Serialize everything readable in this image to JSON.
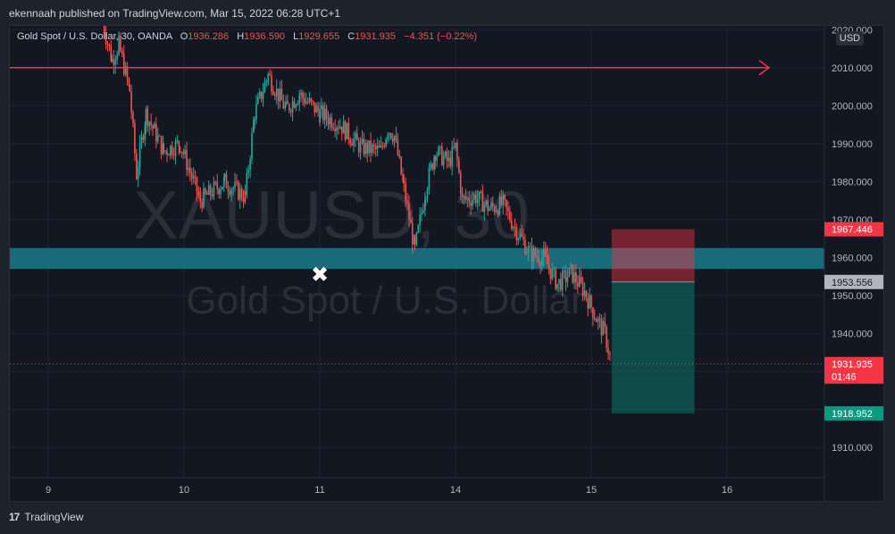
{
  "header": {
    "published": "ekennaah published on TradingView.com, Mar 15, 2022 06:28 UTC+1"
  },
  "legend": {
    "symbol": "Gold Spot / U.S. Dollar, 30, OANDA",
    "open_label": "O",
    "open": "1936.286",
    "high_label": "H",
    "high": "1936.590",
    "low_label": "L",
    "low": "1929.655",
    "close_label": "C",
    "close": "1931.935",
    "change": "−4.351 (−0.22%)"
  },
  "currency": "USD",
  "watermark": {
    "ticker": "XAUUSD, 30",
    "name": "Gold Spot / U.S. Dollar"
  },
  "footer": {
    "brand": "TradingView",
    "logo": "17"
  },
  "colors": {
    "bull": "#26a69a",
    "bear": "#ef5350",
    "zone": "#1b7a8a",
    "stop": "#f23645",
    "target": "#089981"
  },
  "chart_data": {
    "type": "candlestick",
    "title": "Gold Spot / U.S. Dollar, 30, OANDA",
    "ylim": [
      1902,
      2021
    ],
    "y_ticks": [
      "1910.000",
      "1920.000",
      "1930.000",
      "1940.000",
      "1950.000",
      "1960.000",
      "1970.000",
      "1980.000",
      "1990.000",
      "2000.000",
      "2010.000",
      "2020.000"
    ],
    "x_ticks": [
      {
        "label": "9",
        "pos": 0.0
      },
      {
        "label": "10",
        "pos": 1.0
      },
      {
        "label": "11",
        "pos": 2.0
      },
      {
        "label": "14",
        "pos": 3.0
      },
      {
        "label": "15",
        "pos": 4.0
      },
      {
        "label": "16",
        "pos": 5.0
      }
    ],
    "price_path": [
      [
        0.4,
        2022
      ],
      [
        0.47,
        2012
      ],
      [
        0.52,
        2016
      ],
      [
        0.6,
        2004
      ],
      [
        0.65,
        1982
      ],
      [
        0.72,
        1998
      ],
      [
        0.85,
        1988
      ],
      [
        0.97,
        1990
      ],
      [
        1.12,
        1975
      ],
      [
        1.3,
        1980
      ],
      [
        1.45,
        1976
      ],
      [
        1.52,
        1998
      ],
      [
        1.62,
        2008
      ],
      [
        1.75,
        1999
      ],
      [
        1.85,
        2003
      ],
      [
        2.0,
        1998
      ],
      [
        2.15,
        1995
      ],
      [
        2.3,
        1989
      ],
      [
        2.45,
        1988
      ],
      [
        2.5,
        1994
      ],
      [
        2.55,
        1992
      ],
      [
        2.62,
        1978
      ],
      [
        2.7,
        1962
      ],
      [
        2.78,
        1978
      ],
      [
        2.85,
        1988
      ],
      [
        2.95,
        1985
      ],
      [
        3.0,
        1989
      ],
      [
        3.05,
        1975
      ],
      [
        3.15,
        1976
      ],
      [
        3.25,
        1973
      ],
      [
        3.35,
        1974
      ],
      [
        3.45,
        1967
      ],
      [
        3.55,
        1961
      ],
      [
        3.65,
        1960
      ],
      [
        3.75,
        1953
      ],
      [
        3.85,
        1956
      ],
      [
        3.95,
        1951
      ],
      [
        4.05,
        1943
      ],
      [
        4.1,
        1940
      ],
      [
        4.15,
        1932
      ]
    ],
    "horizontal_ray": {
      "price": 2010.0
    },
    "resistance_zone": {
      "from": 1957.0,
      "to": 1962.5
    },
    "marker": {
      "x": 2.0,
      "price": 1955.5,
      "symbol": "✖"
    },
    "trade": {
      "x_start": 4.15,
      "x_end": 4.76,
      "stop": 1967.446,
      "entry": 1953.556,
      "target": 1918.952
    },
    "last_price": 1931.935,
    "price_labels": [
      {
        "text": "1967.446",
        "price": 1967.446,
        "color": "#f23645"
      },
      {
        "text": "1953.556",
        "price": 1953.556,
        "color": "#b2b5be",
        "dark": true
      },
      {
        "text": "1931.935",
        "price": 1931.935,
        "color": "#f23645",
        "sub": "01:46"
      },
      {
        "text": "1918.952",
        "price": 1918.952,
        "color": "#089981"
      }
    ]
  }
}
